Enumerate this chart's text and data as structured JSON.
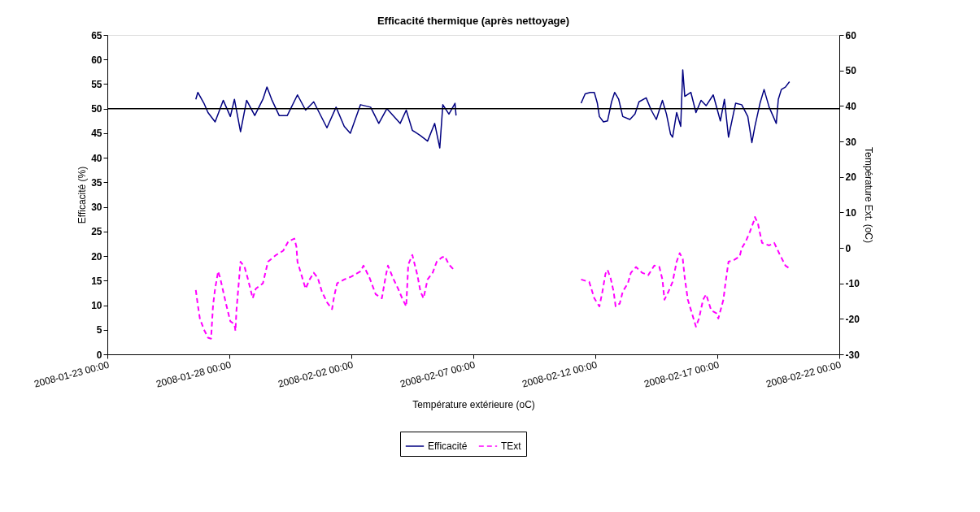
{
  "chart_data": {
    "type": "line",
    "title": "Efficacité thermique (après nettoyage)",
    "xlabel": "Température extérieure (oC)",
    "ylabel": "Efficacité (%)",
    "y2label": "Température Ext. (oC)",
    "xlim": [
      "2008-01-23T00:00",
      "2008-02-22T00:00"
    ],
    "xticks": [
      {
        "value": "2008-01-23T00:00",
        "label": "2008-01-23 00:00"
      },
      {
        "value": "2008-01-28T00:00",
        "label": "2008-01-28 00:00"
      },
      {
        "value": "2008-02-02T00:00",
        "label": "2008-02-02 00:00"
      },
      {
        "value": "2008-02-07T00:00",
        "label": "2008-02-07 00:00"
      },
      {
        "value": "2008-02-12T00:00",
        "label": "2008-02-12 00:00"
      },
      {
        "value": "2008-02-17T00:00",
        "label": "2008-02-17 00:00"
      },
      {
        "value": "2008-02-22T00:00",
        "label": "2008-02-22 00:00"
      }
    ],
    "ylim": [
      0,
      65
    ],
    "yticks": [
      0,
      5,
      10,
      15,
      20,
      25,
      30,
      35,
      40,
      45,
      50,
      55,
      60,
      65
    ],
    "y2lim": [
      -30,
      60
    ],
    "y2ticks": [
      -30,
      -20,
      -10,
      0,
      10,
      20,
      30,
      40,
      50,
      60
    ],
    "grid": false,
    "legend": "bottom",
    "marker": "none",
    "ref_lines": [
      {
        "axis": "y",
        "value": 50,
        "color": "#000000",
        "line_style": "solid"
      }
    ],
    "series": [
      {
        "name": "Efficacité",
        "color": "#000080",
        "line_style": "solid",
        "axis": "y",
        "x": [
          "2008-01-26T15:00",
          "2008-01-26T17:00",
          "2008-01-26T23:00",
          "2008-01-27T03:00",
          "2008-01-27T10:00",
          "2008-01-27T18:00",
          "2008-01-28T01:00",
          "2008-01-28T05:00",
          "2008-01-28T11:00",
          "2008-01-28T17:00",
          "2008-01-29T01:00",
          "2008-01-29T09:00",
          "2008-01-29T13:00",
          "2008-01-29T18:00",
          "2008-01-30T01:00",
          "2008-01-30T09:00",
          "2008-01-30T19:00",
          "2008-01-31T03:00",
          "2008-01-31T11:00",
          "2008-02-01T00:00",
          "2008-02-01T09:00",
          "2008-02-01T17:00",
          "2008-02-01T23:00",
          "2008-02-02T09:00",
          "2008-02-02T19:00",
          "2008-02-03T03:00",
          "2008-02-03T11:00",
          "2008-02-04T00:00",
          "2008-02-04T06:00",
          "2008-02-04T12:00",
          "2008-02-04T20:00",
          "2008-02-05T03:00",
          "2008-02-05T10:00",
          "2008-02-05T15:00",
          "2008-02-05T18:00",
          "2008-02-06T00:00",
          "2008-02-06T06:00",
          "2008-02-06T07:00",
          "2008-02-09T00:00",
          "2008-02-11T10:00",
          "2008-02-11T14:00",
          "2008-02-11T19:00",
          "2008-02-11T23:00",
          "2008-02-12T02:00",
          "2008-02-12T04:00",
          "2008-02-12T08:00",
          "2008-02-12T12:00",
          "2008-02-12T16:00",
          "2008-02-12T19:00",
          "2008-02-12T23:00",
          "2008-02-13T03:00",
          "2008-02-13T10:00",
          "2008-02-13T15:00",
          "2008-02-13T19:00",
          "2008-02-14T02:00",
          "2008-02-14T07:00",
          "2008-02-14T12:00",
          "2008-02-14T18:00",
          "2008-02-14T22:00",
          "2008-02-15T02:00",
          "2008-02-15T04:00",
          "2008-02-15T08:00",
          "2008-02-15T12:00",
          "2008-02-15T14:00",
          "2008-02-15T16:00",
          "2008-02-15T22:00",
          "2008-02-16T03:00",
          "2008-02-16T08:00",
          "2008-02-16T13:00",
          "2008-02-16T20:00",
          "2008-02-17T03:00",
          "2008-02-17T07:00",
          "2008-02-17T11:00",
          "2008-02-17T18:00",
          "2008-02-18T00:00",
          "2008-02-18T06:00",
          "2008-02-18T10:00",
          "2008-02-18T13:00",
          "2008-02-18T18:00",
          "2008-02-18T22:00",
          "2008-02-19T03:00",
          "2008-02-19T10:00",
          "2008-02-19T12:00",
          "2008-02-19T15:00",
          "2008-02-19T19:00",
          "2008-02-19T23:00"
        ],
        "values": [
          51.9,
          53.3,
          51.1,
          49.2,
          47.3,
          51.7,
          48.4,
          51.9,
          45.3,
          51.7,
          48.6,
          51.9,
          54.4,
          51.7,
          48.6,
          48.6,
          52.8,
          49.7,
          51.4,
          46.1,
          50.3,
          46.4,
          45.0,
          50.8,
          50.3,
          47.0,
          50.0,
          47.0,
          49.7,
          45.6,
          44.5,
          43.4,
          47.0,
          42.0,
          50.8,
          48.9,
          51.1,
          48.6,
          null,
          51.1,
          53.0,
          53.3,
          53.3,
          51.1,
          48.4,
          47.3,
          47.5,
          51.4,
          53.3,
          51.9,
          48.4,
          47.8,
          48.9,
          51.4,
          52.2,
          49.7,
          47.8,
          51.7,
          48.9,
          44.8,
          44.2,
          49.2,
          46.4,
          57.9,
          52.5,
          53.3,
          49.2,
          51.7,
          50.6,
          52.8,
          47.5,
          51.9,
          44.2,
          51.1,
          50.8,
          48.4,
          43.1,
          46.4,
          51.1,
          53.9,
          50.3,
          47.0,
          51.9,
          53.9,
          54.4,
          55.5
        ]
      },
      {
        "name": "TExt",
        "color": "#ff00ff",
        "line_style": "dashed",
        "axis": "y2",
        "x": [
          "2008-01-26T15:00",
          "2008-01-26T17:00",
          "2008-01-26T19:00",
          "2008-01-26T23:00",
          "2008-01-27T03:00",
          "2008-01-27T06:00",
          "2008-01-27T08:00",
          "2008-01-27T10:00",
          "2008-01-27T13:00",
          "2008-01-27T15:00",
          "2008-01-27T18:00",
          "2008-01-27T21:00",
          "2008-01-28T01:00",
          "2008-01-28T05:00",
          "2008-01-28T06:00",
          "2008-01-28T07:00",
          "2008-01-28T09:00",
          "2008-01-28T11:00",
          "2008-01-28T15:00",
          "2008-01-28T18:00",
          "2008-01-28T21:00",
          "2008-01-28T23:00",
          "2008-01-29T02:00",
          "2008-01-29T09:00",
          "2008-01-29T14:00",
          "2008-01-29T22:00",
          "2008-01-30T05:00",
          "2008-01-30T10:00",
          "2008-01-30T16:00",
          "2008-01-30T18:00",
          "2008-01-30T19:00",
          "2008-01-30T23:00",
          "2008-01-31T03:00",
          "2008-01-31T07:00",
          "2008-01-31T11:00",
          "2008-01-31T15:00",
          "2008-01-31T19:00",
          "2008-02-01T00:00",
          "2008-02-01T05:00",
          "2008-02-01T07:00",
          "2008-02-01T10:00",
          "2008-02-01T17:00",
          "2008-02-02T00:00",
          "2008-02-02T09:00",
          "2008-02-02T12:00",
          "2008-02-02T18:00",
          "2008-02-03T00:00",
          "2008-02-03T06:00",
          "2008-02-03T10:00",
          "2008-02-03T12:00",
          "2008-02-03T17:00",
          "2008-02-03T22:00",
          "2008-02-04T02:00",
          "2008-02-04T06:00",
          "2008-02-04T08:00",
          "2008-02-04T12:00",
          "2008-02-04T17:00",
          "2008-02-04T20:00",
          "2008-02-04T23:00",
          "2008-02-05T03:00",
          "2008-02-05T08:00",
          "2008-02-05T12:00",
          "2008-02-05T17:00",
          "2008-02-05T20:00",
          "2008-02-06T00:00",
          "2008-02-06T05:00",
          "2008-02-09T00:00",
          "2008-02-11T10:00",
          "2008-02-11T18:00",
          "2008-02-11T23:00",
          "2008-02-12T04:00",
          "2008-02-12T07:00",
          "2008-02-12T10:00",
          "2008-02-12T12:00",
          "2008-02-12T15:00",
          "2008-02-12T18:00",
          "2008-02-12T20:00",
          "2008-02-13T00:00",
          "2008-02-13T03:00",
          "2008-02-13T08:00",
          "2008-02-13T11:00",
          "2008-02-13T16:00",
          "2008-02-13T22:00",
          "2008-02-14T04:00",
          "2008-02-14T10:00",
          "2008-02-14T15:00",
          "2008-02-14T18:00",
          "2008-02-14T20:00",
          "2008-02-15T00:00",
          "2008-02-15T04:00",
          "2008-02-15T08:00",
          "2008-02-15T11:00",
          "2008-02-15T14:00",
          "2008-02-15T16:00",
          "2008-02-15T19:00",
          "2008-02-15T23:00",
          "2008-02-16T03:00",
          "2008-02-16T06:00",
          "2008-02-16T10:00",
          "2008-02-16T13:00",
          "2008-02-16T18:00",
          "2008-02-16T23:00",
          "2008-02-17T01:00",
          "2008-02-17T06:00",
          "2008-02-17T08:00",
          "2008-02-17T11:00",
          "2008-02-17T16:00",
          "2008-02-17T22:00",
          "2008-02-18T00:00",
          "2008-02-18T04:00",
          "2008-02-18T08:00",
          "2008-02-18T12:00",
          "2008-02-18T13:00",
          "2008-02-18T16:00",
          "2008-02-18T20:00",
          "2008-02-19T03:00",
          "2008-02-19T08:00",
          "2008-02-19T13:00",
          "2008-02-19T19:00",
          "2008-02-19T23:00"
        ],
        "values": [
          -11.9,
          -16.1,
          -19.9,
          -23.0,
          -25.3,
          -25.6,
          -16.1,
          -11.5,
          -6.6,
          -8.5,
          -12.3,
          -16.1,
          -20.7,
          -21.5,
          -23.4,
          -17.6,
          -10.8,
          -3.9,
          -5.4,
          -8.5,
          -11.9,
          -14.2,
          -11.5,
          -10.0,
          -3.9,
          -2.0,
          -0.8,
          1.8,
          2.6,
          0.3,
          -3.9,
          -7.7,
          -11.5,
          -8.9,
          -7.0,
          -8.5,
          -12.3,
          -15.3,
          -17.3,
          -13.8,
          -10.0,
          -8.9,
          -8.1,
          -6.6,
          -5.0,
          -8.5,
          -13.1,
          -14.2,
          -7.7,
          -5.0,
          -8.5,
          -11.5,
          -14.2,
          -16.5,
          -4.7,
          -2.0,
          -7.7,
          -12.3,
          -14.2,
          -8.9,
          -7.0,
          -3.9,
          -2.7,
          -2.4,
          -4.7,
          -6.2,
          null,
          -8.9,
          -9.6,
          -14.2,
          -16.5,
          -12.3,
          -7.3,
          -6.2,
          -8.5,
          -12.3,
          -16.5,
          -15.7,
          -12.3,
          -10.0,
          -7.0,
          -5.4,
          -7.0,
          -7.7,
          -5.0,
          -5.4,
          -8.9,
          -14.6,
          -12.3,
          -9.6,
          -3.9,
          -1.5,
          -3.1,
          -8.5,
          -14.6,
          -18.4,
          -22.2,
          -19.9,
          -14.6,
          -13.1,
          -17.6,
          -18.4,
          -19.9,
          -14.6,
          -10.0,
          -3.9,
          -3.5,
          -2.4,
          -0.1,
          1.8,
          4.5,
          7.6,
          8.7,
          6.8,
          1.4,
          0.7,
          1.4,
          -1.6,
          -5.0,
          -5.8
        ]
      }
    ]
  }
}
